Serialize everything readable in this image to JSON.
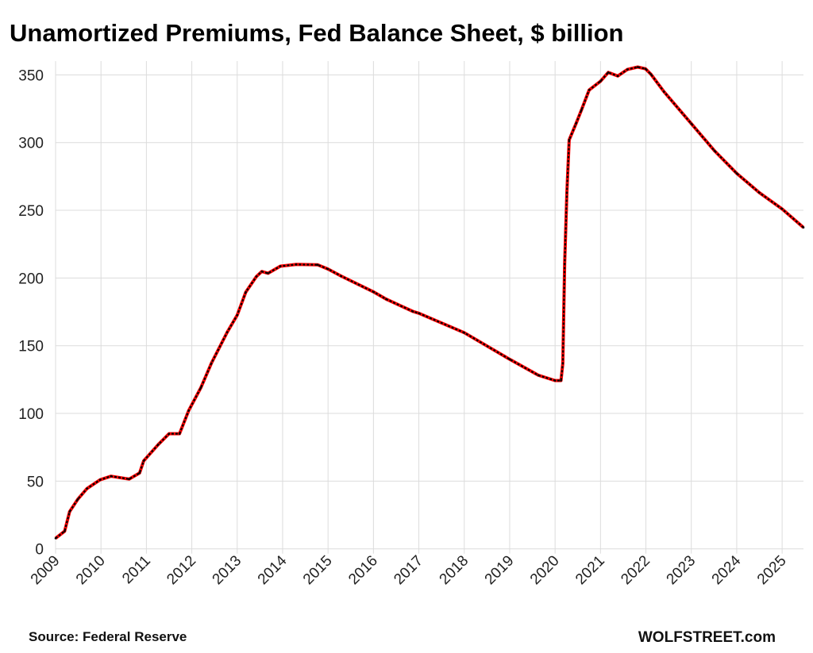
{
  "chart_data": {
    "type": "line",
    "title": "Unamortized Premiums, Fed Balance Sheet, $ billion",
    "xlabel": "",
    "ylabel": "",
    "xlim": [
      2009,
      2025.47
    ],
    "ylim": [
      0,
      350
    ],
    "yticks": [
      0,
      50,
      100,
      150,
      200,
      250,
      300,
      350
    ],
    "xticks": [
      "2009",
      "2010",
      "2011",
      "2012",
      "2013",
      "2014",
      "2015",
      "2016",
      "2017",
      "2018",
      "2019",
      "2020",
      "2021",
      "2022",
      "2023",
      "2024",
      "2025"
    ],
    "grid": true,
    "line_color": "#ff0000",
    "marker_color": "#000000",
    "series": [
      {
        "x": [
          2009.0,
          2009.2,
          2009.31,
          2009.49,
          2009.69,
          2009.98,
          2010.22,
          2010.62,
          2010.85,
          2010.94,
          2011.26,
          2011.5,
          2011.73,
          2011.93,
          2012.2,
          2012.43,
          2012.78,
          2013.0,
          2013.19,
          2013.42,
          2013.54,
          2013.68,
          2013.95,
          2014.3,
          2014.77,
          2015.0,
          2015.29,
          2016.01,
          2016.28,
          2016.87,
          2017.0,
          2018.0,
          2019.0,
          2019.63,
          2020.0,
          2020.13,
          2020.17,
          2020.21,
          2020.26,
          2020.31,
          2020.46,
          2020.58,
          2020.75,
          2021.0,
          2021.17,
          2021.38,
          2021.59,
          2021.82,
          2021.99,
          2022.11,
          2022.4,
          2023.0,
          2023.51,
          2024.0,
          2024.5,
          2025.0,
          2025.47
        ],
        "y": [
          7.8,
          13,
          27.5,
          36.6,
          44.5,
          51,
          53.6,
          51.5,
          56,
          65,
          77,
          85,
          85,
          102,
          119,
          137,
          160,
          172.6,
          189.6,
          201,
          204.8,
          203.5,
          208.7,
          210,
          209.8,
          206.6,
          201.4,
          189.6,
          184.4,
          175.3,
          174,
          159.6,
          140,
          128.2,
          124.3,
          124.3,
          137,
          210.6,
          263,
          302,
          314,
          324,
          338.8,
          345.3,
          351.8,
          349.2,
          354,
          355.8,
          354.5,
          350.5,
          337.5,
          314,
          294,
          277.3,
          263,
          251,
          237.3
        ]
      }
    ]
  },
  "footer": {
    "source": "Source: Federal Reserve",
    "brand": "WOLFSTREET.com"
  }
}
